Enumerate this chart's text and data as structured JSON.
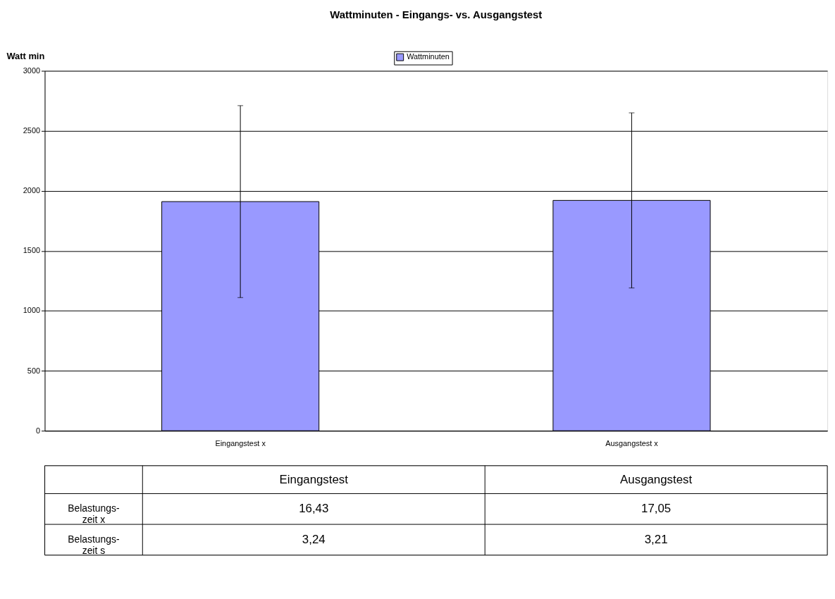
{
  "chart_data": [
    {
      "type": "bar",
      "title": "Wattminuten - Eingangs- vs. Ausgangstest",
      "ylabel": "Watt min",
      "categories": [
        "Eingangstest  x",
        "Ausgangstest x"
      ],
      "series": [
        {
          "name": "Wattminuten",
          "color": "#9999ff",
          "values": [
            1910,
            1920
          ],
          "errors": [
            800,
            730
          ]
        }
      ],
      "ylim": [
        0,
        3000
      ],
      "yticks": [
        0,
        500,
        1000,
        1500,
        2000,
        2500,
        3000
      ],
      "grid": "y",
      "legend": "top"
    },
    {
      "type": "other",
      "categories": [
        "Eingangstest",
        "Ausgangstest"
      ],
      "y_categories": [
        "Belastungs-zeit x",
        "Belastungs-zeit s"
      ],
      "cell_labels": [
        [
          "16,43",
          "17,05"
        ],
        [
          "3,24",
          "3,21"
        ]
      ]
    }
  ]
}
